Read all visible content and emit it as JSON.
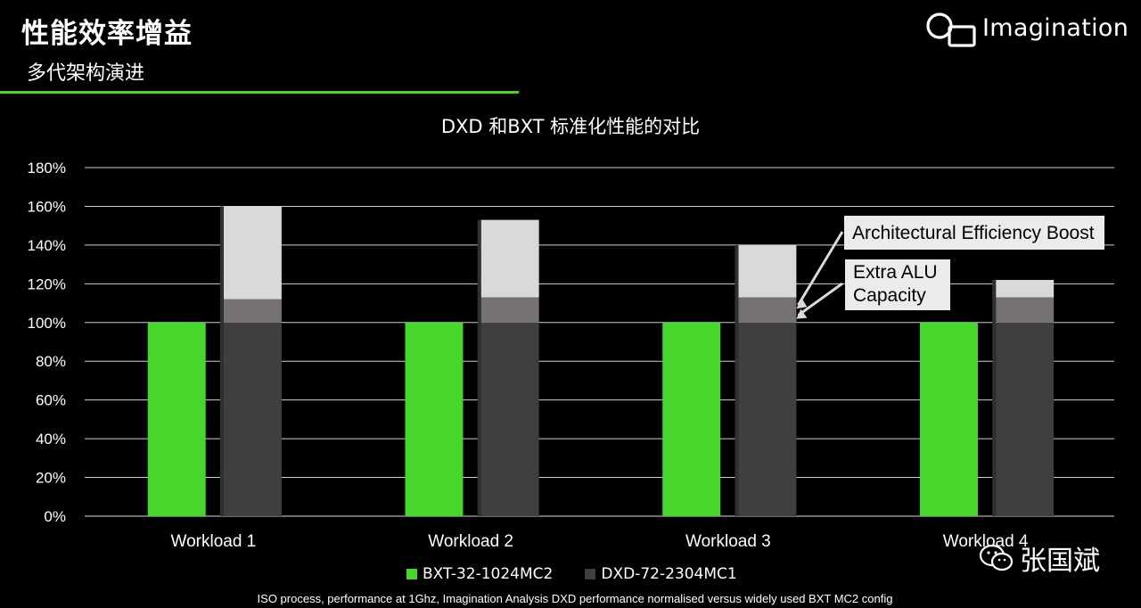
{
  "slide": {
    "title": "性能效率增益",
    "subtitle": "多代架构演进"
  },
  "logo": {
    "text": "Imagination"
  },
  "callouts": {
    "arch": "Architectural Efficiency Boost",
    "alu_line1": "Extra ALU",
    "alu_line2": "Capacity"
  },
  "legend": {
    "series1": "BXT-32-1024MC2",
    "series2": "DXD-72-2304MC1"
  },
  "footnote": "ISO process, performance at 1Ghz, Imagination Analysis DXD performance normalised versus widely used BXT MC2 config",
  "watermark": {
    "text": "张国斌"
  },
  "colors": {
    "bxt": "#47d72c",
    "dxd_base": "#3f3f3f",
    "dxd_alu": "#767171",
    "dxd_arch": "#d9d9d9",
    "accent_rule": "#4ed32c"
  },
  "chart_data": {
    "type": "bar",
    "title": "DXD 和BXT 标准化性能的对比",
    "categories": [
      "Workload 1",
      "Workload 2",
      "Workload 3",
      "Workload 4"
    ],
    "ylim": [
      0,
      180
    ],
    "yticks": [
      "0%",
      "20%",
      "40%",
      "60%",
      "80%",
      "100%",
      "120%",
      "140%",
      "160%",
      "180%"
    ],
    "grid": true,
    "legend_position": "bottom",
    "series": [
      {
        "name": "BXT-32-1024MC2",
        "values": [
          100,
          100,
          100,
          100
        ]
      },
      {
        "name": "DXD-72-2304MC1",
        "stack": [
          {
            "part": "base",
            "values": [
              100,
              100,
              100,
              100
            ]
          },
          {
            "part": "Extra ALU Capacity",
            "values": [
              12,
              13,
              13,
              13
            ]
          },
          {
            "part": "Architectural Efficiency Boost",
            "values": [
              48,
              40,
              27,
              9
            ]
          }
        ]
      }
    ]
  }
}
